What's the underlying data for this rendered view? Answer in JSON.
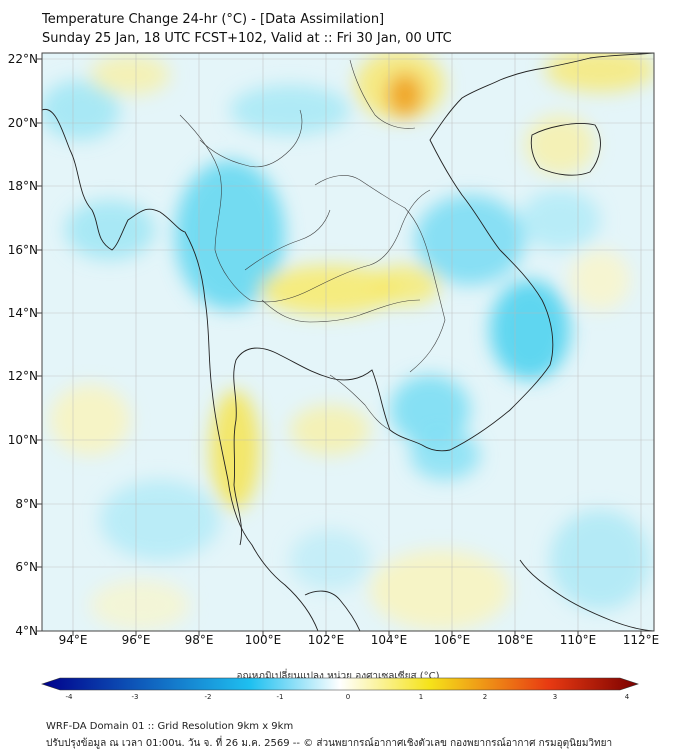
{
  "title": {
    "line1": "Temperature Change 24-hr (°C) - [Data Assimilation]",
    "line2": "Sunday 25 Jan, 18 UTC FCST+102, Valid at :: Fri 30 Jan, 00 UTC"
  },
  "map": {
    "lat_labels": [
      "22°N",
      "20°N",
      "18°N",
      "16°N",
      "14°N",
      "12°N",
      "10°N",
      "8°N",
      "6°N",
      "4°N"
    ],
    "lon_labels": [
      "94°E",
      "96°E",
      "98°E",
      "100°E",
      "102°E",
      "104°E",
      "106°E",
      "108°E",
      "110°E",
      "112°E"
    ]
  },
  "colorbar": {
    "title": "อุณหภูมิเปลี่ยนแปลง หน่วย องศาเซลเซียส (°C)",
    "ticks": [
      "-4",
      "-3",
      "-2",
      "-1",
      "0",
      "1",
      "2",
      "3",
      "4"
    ],
    "colors": {
      "min": "#00008b",
      "cold": "#1fc0f0",
      "zero": "#ffffff",
      "warm": "#f5e31a",
      "hot": "#e83a12",
      "max": "#7a0000"
    }
  },
  "footer": {
    "line1": "WRF-DA Domain 01 :: Grid Resolution 9km x 9km",
    "line2": "ปรับปรุงข้อมูล ณ เวลา 01:00น. วัน จ. ที่ 26 ม.ค. 2569 -- © ส่วนพยากรณ์อากาศเชิงตัวเลข กองพยากรณ์อากาศ กรมอุตุนิยมวิทยา"
  }
}
